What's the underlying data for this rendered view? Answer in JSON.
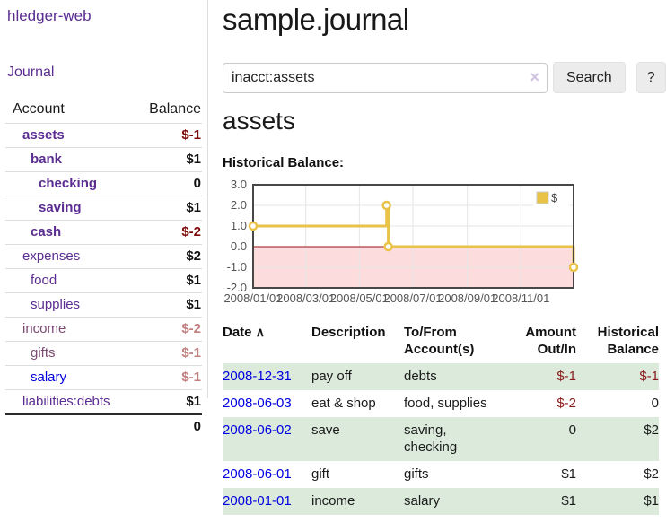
{
  "app": {
    "title": "hledger-web",
    "nav_journal": "Journal"
  },
  "sidebar": {
    "columns": {
      "account": "Account",
      "balance": "Balance"
    },
    "accounts": [
      {
        "name": "assets",
        "depth": 1,
        "balance": "$-1",
        "name_style": "bold",
        "balance_style": "neg-strong"
      },
      {
        "name": "bank",
        "depth": 2,
        "balance": "$1",
        "name_style": "bold",
        "balance_style": "normal"
      },
      {
        "name": "checking",
        "depth": 3,
        "balance": "0",
        "name_style": "bold",
        "balance_style": "normal"
      },
      {
        "name": "saving",
        "depth": 3,
        "balance": "$1",
        "name_style": "bold",
        "balance_style": "normal"
      },
      {
        "name": "cash",
        "depth": 2,
        "balance": "$-2",
        "name_style": "bold",
        "balance_style": "neg-strong"
      },
      {
        "name": "expenses",
        "depth": 1,
        "balance": "$2",
        "name_style": "normal",
        "balance_style": "normal"
      },
      {
        "name": "food",
        "depth": 2,
        "balance": "$1",
        "name_style": "normal",
        "balance_style": "normal"
      },
      {
        "name": "supplies",
        "depth": 2,
        "balance": "$1",
        "name_style": "normal",
        "balance_style": "normal"
      },
      {
        "name": "income",
        "depth": 1,
        "balance": "$-2",
        "name_style": "muted",
        "balance_style": "neg-muted"
      },
      {
        "name": "gifts",
        "depth": 2,
        "balance": "$-1",
        "name_style": "muted",
        "balance_style": "neg-muted"
      },
      {
        "name": "salary",
        "depth": 2,
        "balance": "$-1",
        "name_style": "unvisited",
        "balance_style": "neg-muted"
      },
      {
        "name": "liabilities:debts",
        "depth": 1,
        "balance": "$1",
        "name_style": "normal",
        "balance_style": "normal"
      }
    ],
    "total": "0"
  },
  "header": {
    "title": "sample.journal"
  },
  "search": {
    "value": "inacct:assets",
    "clear_icon": "×",
    "button": "Search",
    "help_button": "?"
  },
  "account_page": {
    "title": "assets",
    "chart_label": "Historical Balance:"
  },
  "chart_data": {
    "type": "line",
    "step": true,
    "title": "Historical Balance",
    "xlim": [
      "2008-01-01",
      "2008-12-31"
    ],
    "ylim": [
      -2,
      3
    ],
    "y_ticks": [
      {
        "value": 3,
        "label": "3.0"
      },
      {
        "value": 2,
        "label": "2.0"
      },
      {
        "value": 1,
        "label": "1.0"
      },
      {
        "value": 0,
        "label": "0.0"
      },
      {
        "value": -1,
        "label": "-1.0"
      },
      {
        "value": -2,
        "label": "-2.0"
      }
    ],
    "x_ticks": [
      {
        "date": "2008-01-01",
        "label": "2008/01/01"
      },
      {
        "date": "2008-03-01",
        "label": "2008/03/01"
      },
      {
        "date": "2008-05-01",
        "label": "2008/05/01"
      },
      {
        "date": "2008-07-01",
        "label": "2008/07/01"
      },
      {
        "date": "2008-09-01",
        "label": "2008/09/01"
      },
      {
        "date": "2008-11-01",
        "label": "2008/11/01"
      }
    ],
    "series": [
      {
        "name": "$",
        "color": "#e9c248",
        "points": [
          [
            "2008-01-01",
            1
          ],
          [
            "2008-06-01",
            2
          ],
          [
            "2008-06-03",
            0
          ],
          [
            "2008-12-31",
            -1
          ]
        ]
      }
    ],
    "negative_fill": "#fcdcdc",
    "zero_line_color": "#991111",
    "grid_color": "#e6e6e6",
    "plot_border_color": "#474747",
    "legend_position": "top-right"
  },
  "register": {
    "columns": {
      "date": "Date",
      "sort_indicator": "∧",
      "description": "Description",
      "account_line1": "To/From",
      "account_line2": "Account(s)",
      "amount_line1": "Amount",
      "amount_line2": "Out/In",
      "balance_line1": "Historical",
      "balance_line2": "Balance"
    },
    "rows": [
      {
        "date": "2008-12-31",
        "description": "pay off",
        "accounts": [
          "debts"
        ],
        "amount": "$-1",
        "balance": "$-1",
        "amount_style": "neg",
        "balance_style": "neg",
        "shaded": true
      },
      {
        "date": "2008-06-03",
        "description": "eat & shop",
        "accounts": [
          "food, supplies"
        ],
        "amount": "$-2",
        "balance": "0",
        "amount_style": "neg",
        "balance_style": "normal",
        "shaded": false
      },
      {
        "date": "2008-06-02",
        "description": "save",
        "accounts": [
          "saving,",
          "checking"
        ],
        "amount": "0",
        "balance": "$2",
        "amount_style": "normal",
        "balance_style": "normal",
        "shaded": true
      },
      {
        "date": "2008-06-01",
        "description": "gift",
        "accounts": [
          "gifts"
        ],
        "amount": "$1",
        "balance": "$2",
        "amount_style": "normal",
        "balance_style": "normal",
        "shaded": false
      },
      {
        "date": "2008-01-01",
        "description": "income",
        "accounts": [
          "salary"
        ],
        "amount": "$1",
        "balance": "$1",
        "amount_style": "normal",
        "balance_style": "normal",
        "shaded": true
      }
    ]
  }
}
